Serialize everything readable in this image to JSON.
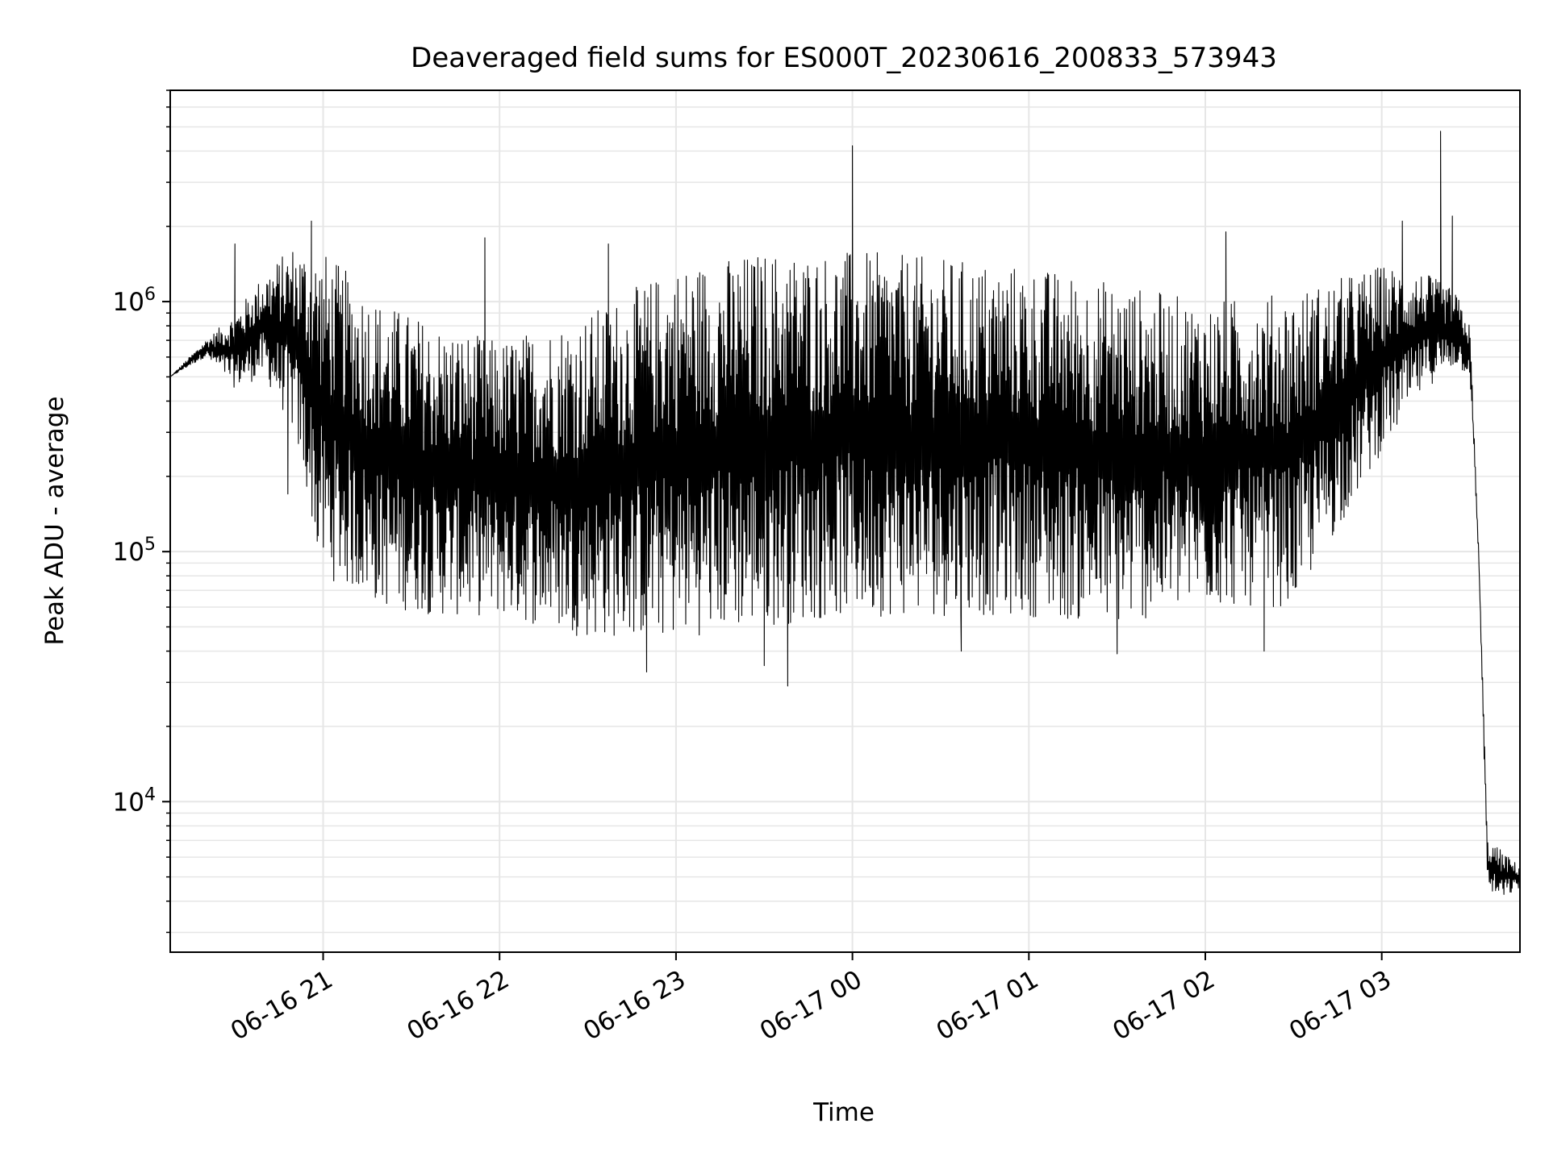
{
  "chart_data": {
    "type": "line",
    "title": "Deaveraged field sums for ES000T_20230616_200833_573943",
    "xlabel": "Time",
    "ylabel": "Peak ADU - average",
    "yscale": "log",
    "ylim": [
      2500,
      7000000
    ],
    "grid": true,
    "colors": {
      "line": "#000000",
      "grid": "#e6e6e6",
      "axes": "#000000"
    },
    "x_time_range": [
      "2023-06-16 20:08",
      "2023-06-17 03:47"
    ],
    "x_ticks": [
      {
        "time": "2023-06-16 21:00",
        "label": "06-16 21"
      },
      {
        "time": "2023-06-16 22:00",
        "label": "06-16 22"
      },
      {
        "time": "2023-06-16 23:00",
        "label": "06-16 23"
      },
      {
        "time": "2023-06-17 00:00",
        "label": "06-17 00"
      },
      {
        "time": "2023-06-17 01:00",
        "label": "06-17 01"
      },
      {
        "time": "2023-06-17 02:00",
        "label": "06-17 02"
      },
      {
        "time": "2023-06-17 03:00",
        "label": "06-17 03"
      }
    ],
    "y_ticks": [
      {
        "value": 10000,
        "base": "10",
        "exp": "4"
      },
      {
        "value": 100000,
        "base": "10",
        "exp": "5"
      },
      {
        "value": 1000000,
        "base": "10",
        "exp": "6"
      }
    ],
    "series": [
      {
        "upper_envelope": {
          "time": [
            "2023-06-16 20:08",
            "2023-06-16 20:20",
            "2023-06-16 20:30",
            "2023-06-16 20:40",
            "2023-06-16 20:50",
            "2023-06-16 21:00",
            "2023-06-16 21:20",
            "2023-06-16 21:40",
            "2023-06-16 22:00",
            "2023-06-16 22:30",
            "2023-06-16 23:00",
            "2023-06-16 23:30",
            "2023-06-17 00:00",
            "2023-06-17 00:30",
            "2023-06-17 01:00",
            "2023-06-17 01:30",
            "2023-06-17 02:00",
            "2023-06-17 02:30",
            "2023-06-17 03:00",
            "2023-06-17 03:15",
            "2023-06-17 03:25",
            "2023-06-17 03:30",
            "2023-06-17 03:33",
            "2023-06-17 03:36",
            "2023-06-17 03:40",
            "2023-06-17 03:47"
          ],
          "value": [
            500000,
            700000,
            900000,
            1300000,
            1700000,
            1600000,
            1000000,
            800000,
            700000,
            900000,
            1400000,
            1600000,
            1600000,
            1500000,
            1400000,
            1200000,
            1000000,
            1100000,
            1400000,
            1300000,
            1100000,
            800000,
            100000,
            7000,
            6500,
            5500
          ]
        },
        "lower_envelope": {
          "time": [
            "2023-06-16 20:08",
            "2023-06-16 20:20",
            "2023-06-16 20:30",
            "2023-06-16 20:40",
            "2023-06-16 20:50",
            "2023-06-16 21:00",
            "2023-06-16 21:20",
            "2023-06-16 21:40",
            "2023-06-16 22:00",
            "2023-06-16 22:30",
            "2023-06-16 23:00",
            "2023-06-16 23:30",
            "2023-06-17 00:00",
            "2023-06-17 00:30",
            "2023-06-17 01:00",
            "2023-06-17 01:30",
            "2023-06-17 02:00",
            "2023-06-17 02:30",
            "2023-06-17 03:00",
            "2023-06-17 03:15",
            "2023-06-17 03:25",
            "2023-06-17 03:30",
            "2023-06-17 03:33",
            "2023-06-17 03:36",
            "2023-06-17 03:40",
            "2023-06-17 03:47"
          ],
          "value": [
            500000,
            600000,
            450000,
            500000,
            300000,
            80000,
            60000,
            55000,
            55000,
            45000,
            45000,
            50000,
            55000,
            55000,
            55000,
            50000,
            60000,
            60000,
            250000,
            450000,
            550000,
            500000,
            90000,
            4500,
            4000,
            4500
          ]
        },
        "spikes": [
          {
            "time": "2023-06-16 20:30",
            "value": 1700000
          },
          {
            "time": "2023-06-16 20:56",
            "value": 2100000
          },
          {
            "time": "2023-06-16 21:55",
            "value": 1800000
          },
          {
            "time": "2023-06-16 22:37",
            "value": 1700000
          },
          {
            "time": "2023-06-17 00:00",
            "value": 4200000
          },
          {
            "time": "2023-06-17 02:07",
            "value": 1900000
          },
          {
            "time": "2023-06-17 03:07",
            "value": 2100000
          },
          {
            "time": "2023-06-17 03:20",
            "value": 4800000
          },
          {
            "time": "2023-06-17 03:24",
            "value": 2200000
          }
        ],
        "dips": [
          {
            "time": "2023-06-16 20:48",
            "value": 170000
          },
          {
            "time": "2023-06-16 20:58",
            "value": 110000
          },
          {
            "time": "2023-06-16 22:50",
            "value": 33000
          },
          {
            "time": "2023-06-16 23:30",
            "value": 35000
          },
          {
            "time": "2023-06-16 23:38",
            "value": 29000
          },
          {
            "time": "2023-06-17 00:37",
            "value": 40000
          },
          {
            "time": "2023-06-17 01:30",
            "value": 39000
          },
          {
            "time": "2023-06-17 02:20",
            "value": 40000
          }
        ]
      }
    ]
  }
}
